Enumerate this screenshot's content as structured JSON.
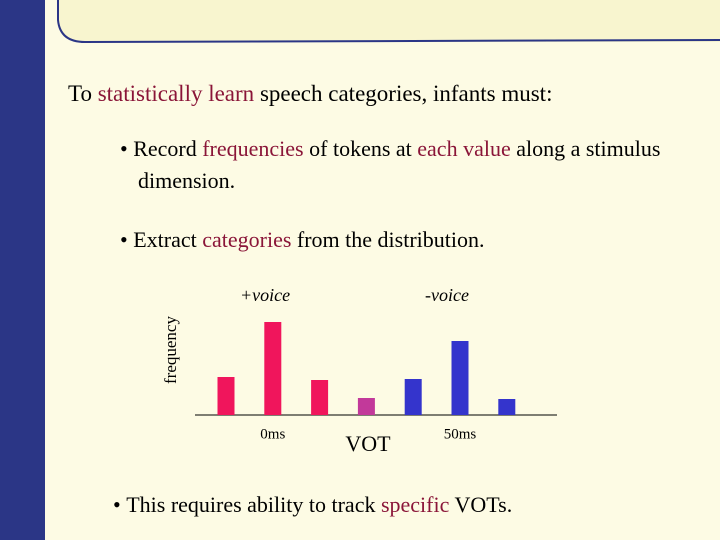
{
  "slide": {
    "title": [
      {
        "text": "To "
      },
      {
        "text": "statistically learn",
        "color": "#8a1538"
      },
      {
        "text": " speech categories, infants must:"
      }
    ],
    "bullets": [
      [
        {
          "text": "Record "
        },
        {
          "text": "frequencies",
          "color": "#8a1538"
        },
        {
          "text": " of tokens at "
        },
        {
          "text": "each value",
          "color": "#8a1538"
        },
        {
          "text": " along a stimulus dimension."
        }
      ],
      [
        {
          "text": "Extract "
        },
        {
          "text": "categories",
          "color": "#8a1538"
        },
        {
          "text": " from the distribution."
        }
      ],
      [
        {
          "text": "This requires ability to track "
        },
        {
          "text": "specific",
          "color": "#8a1538"
        },
        {
          "text": " VOTs."
        }
      ]
    ]
  },
  "chart_data": {
    "type": "bar",
    "xlabel": "VOT",
    "ylabel": "frequency",
    "annotations": [
      "+voice",
      "-voice"
    ],
    "categories": [
      null,
      "0ms",
      null,
      null,
      null,
      "50ms",
      null
    ],
    "values": [
      38,
      93,
      35,
      17,
      36,
      74,
      16
    ],
    "colors": [
      "#f0155c",
      "#f0155c",
      "#f0155c",
      "#c2399a",
      "#3434cc",
      "#3434cc",
      "#3434cc"
    ],
    "ylim": [
      0,
      100
    ]
  }
}
